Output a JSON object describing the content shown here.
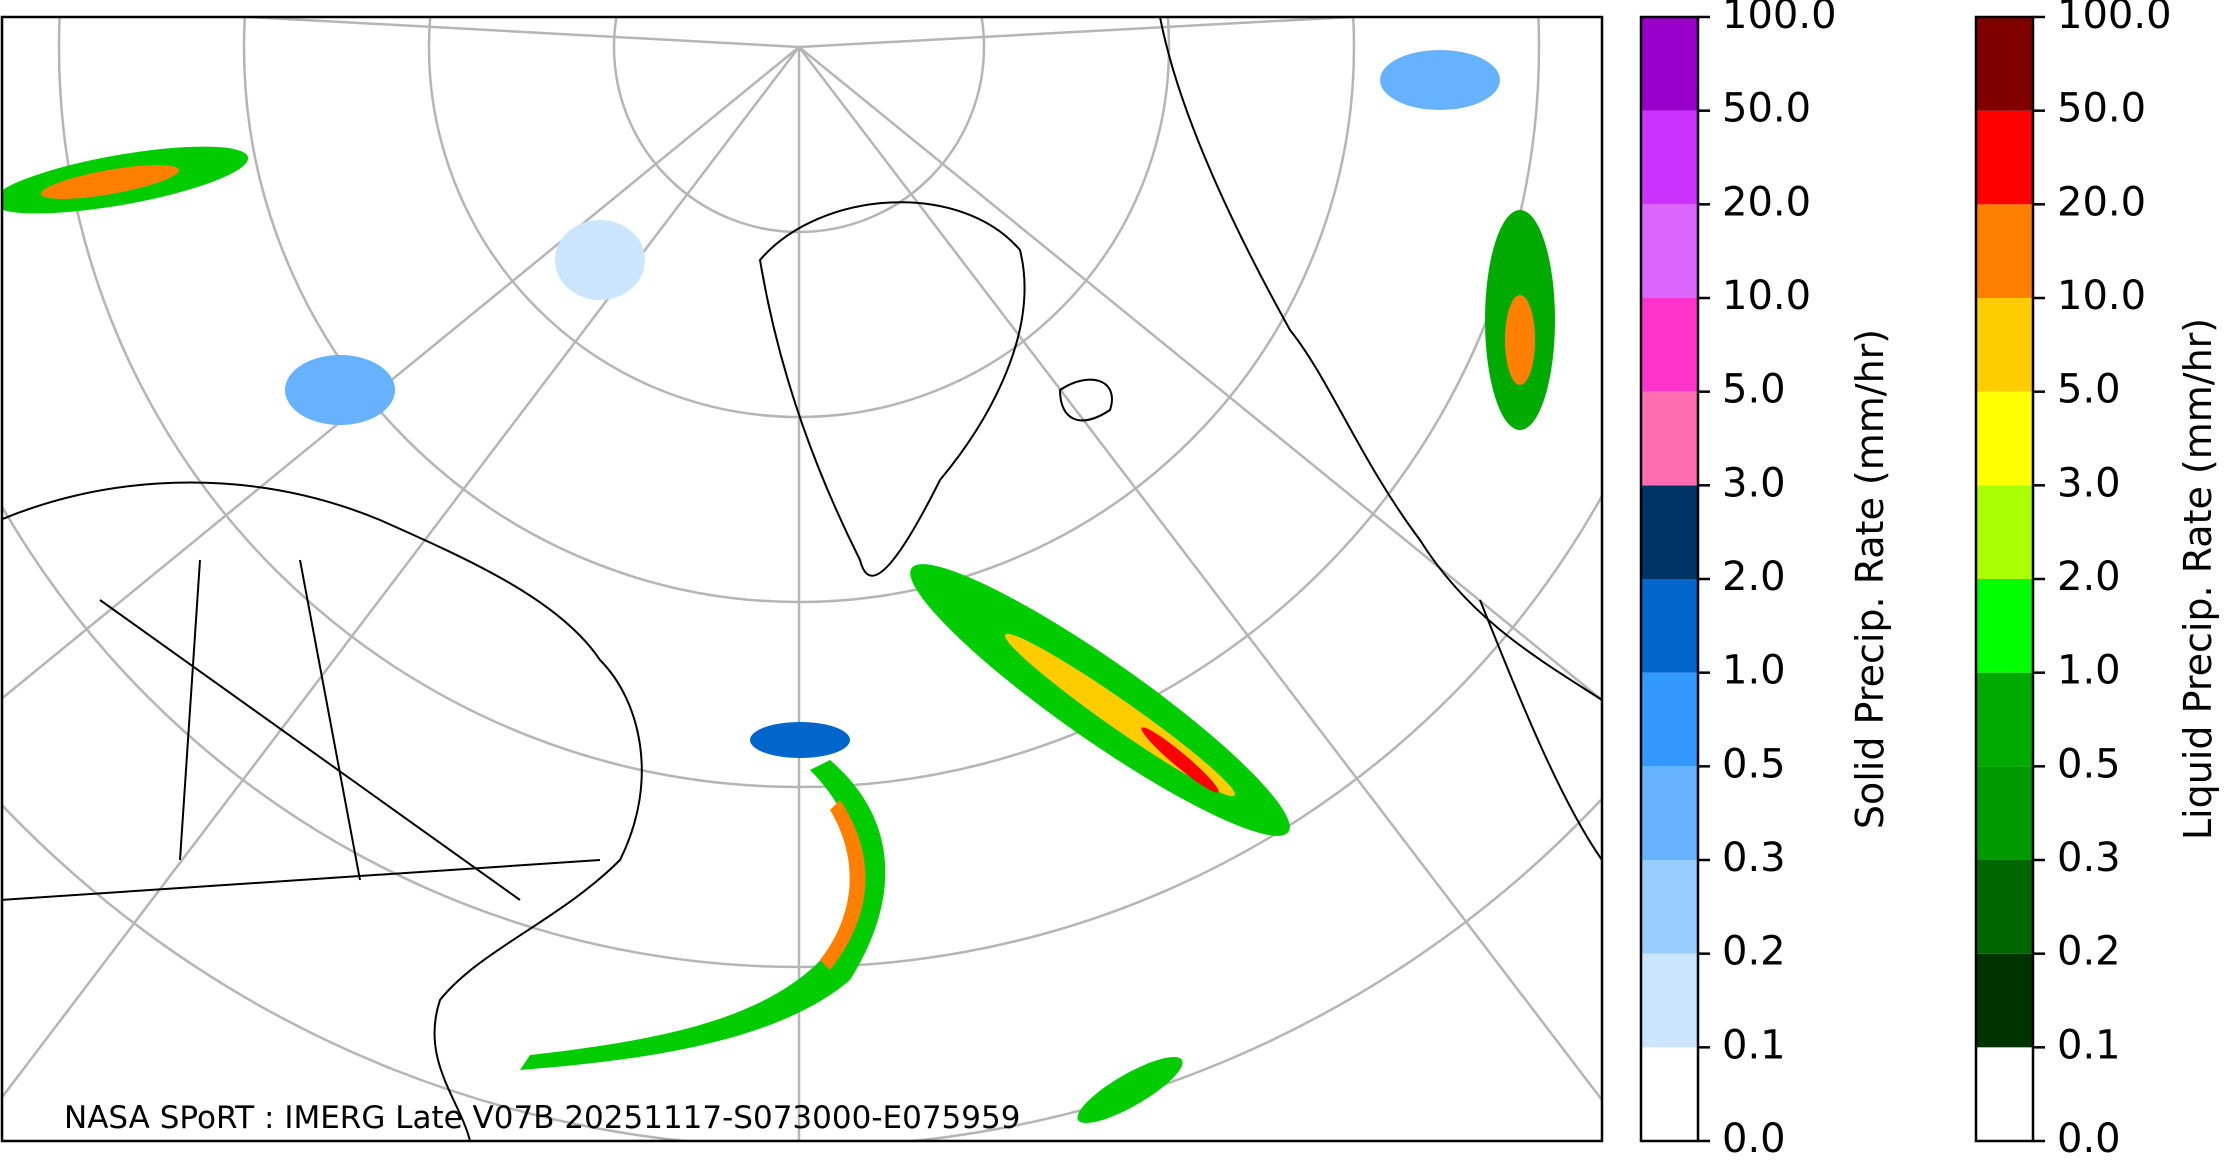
{
  "map": {
    "caption": "NASA SPoRT : IMERG Late V07B 20251117-S073000-E075959",
    "colorbars": [
      {
        "label": "Solid Precip. Rate (mm/hr)",
        "ticks": [
          {
            "value": 0,
            "label": "0.0"
          },
          {
            "value": 0.1,
            "label": "0.1"
          },
          {
            "value": 0.2,
            "label": "0.2"
          },
          {
            "value": 0.3,
            "label": "0.3"
          },
          {
            "value": 0.5,
            "label": "0.5"
          },
          {
            "value": 1,
            "label": "1.0"
          },
          {
            "value": 2,
            "label": "2.0"
          },
          {
            "value": 3,
            "label": "3.0"
          },
          {
            "value": 5,
            "label": "5.0"
          },
          {
            "value": 10,
            "label": "10.0"
          },
          {
            "value": 20,
            "label": "20.0"
          },
          {
            "value": 50,
            "label": "50.0"
          },
          {
            "value": 100,
            "label": "100.0"
          }
        ],
        "colors": [
          "#ffffff",
          "#cce5ff",
          "#99ccff",
          "#66b2ff",
          "#3399ff",
          "#0066cc",
          "#003366",
          "#ff6eb0",
          "#ff33cc",
          "#dd66ff",
          "#cc33ff",
          "#9900cc"
        ]
      },
      {
        "label": "Liquid Precip. Rate (mm/hr)",
        "ticks": [
          {
            "value": 0,
            "label": "0.0"
          },
          {
            "value": 0.1,
            "label": "0.1"
          },
          {
            "value": 0.2,
            "label": "0.2"
          },
          {
            "value": 0.3,
            "label": "0.3"
          },
          {
            "value": 0.5,
            "label": "0.5"
          },
          {
            "value": 1,
            "label": "1.0"
          },
          {
            "value": 2,
            "label": "2.0"
          },
          {
            "value": 3,
            "label": "3.0"
          },
          {
            "value": 5,
            "label": "5.0"
          },
          {
            "value": 10,
            "label": "10.0"
          },
          {
            "value": 20,
            "label": "20.0"
          },
          {
            "value": 50,
            "label": "50.0"
          },
          {
            "value": 100,
            "label": "100.0"
          }
        ],
        "colors": [
          "#ffffff",
          "#003300",
          "#006600",
          "#009900",
          "#00aa00",
          "#00ff00",
          "#aaff00",
          "#ffff00",
          "#ffcc00",
          "#ff8000",
          "#ff0000",
          "#800000",
          "#3d0000"
        ]
      }
    ]
  }
}
